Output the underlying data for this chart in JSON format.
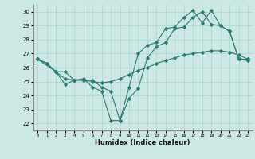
{
  "xlabel": "Humidex (Indice chaleur)",
  "bg_color": "#cce8e4",
  "grid_color": "#aad4cc",
  "line_color": "#2d7a6e",
  "xlim": [
    -0.5,
    23.5
  ],
  "ylim": [
    21.5,
    30.5
  ],
  "xticks": [
    0,
    1,
    2,
    3,
    4,
    5,
    6,
    7,
    8,
    9,
    10,
    11,
    12,
    13,
    14,
    15,
    16,
    17,
    18,
    19,
    20,
    21,
    22,
    23
  ],
  "yticks": [
    22,
    23,
    24,
    25,
    26,
    27,
    28,
    29,
    30
  ],
  "line1_x": [
    0,
    1,
    2,
    3,
    4,
    5,
    6,
    7,
    8,
    9,
    10,
    11,
    12,
    13,
    14,
    15,
    16,
    17,
    18,
    19,
    20,
    21,
    22,
    23
  ],
  "line1_y": [
    26.6,
    26.3,
    25.7,
    24.8,
    25.1,
    25.2,
    24.6,
    24.3,
    22.2,
    22.2,
    24.6,
    27.0,
    27.6,
    27.8,
    28.8,
    28.9,
    29.6,
    30.1,
    29.2,
    30.1,
    29.0,
    28.6,
    26.6,
    26.6
  ],
  "line2_x": [
    0,
    1,
    2,
    3,
    4,
    5,
    6,
    7,
    8,
    9,
    10,
    11,
    12,
    13,
    14,
    15,
    16,
    17,
    18,
    19,
    20,
    21,
    22,
    23
  ],
  "line2_y": [
    26.6,
    26.3,
    25.7,
    25.2,
    25.1,
    25.1,
    25.0,
    24.9,
    25.0,
    25.2,
    25.5,
    25.8,
    26.0,
    26.3,
    26.5,
    26.7,
    26.9,
    27.0,
    27.1,
    27.2,
    27.2,
    27.1,
    26.9,
    26.6
  ],
  "line3_x": [
    0,
    2,
    3,
    4,
    5,
    6,
    7,
    8,
    9,
    10,
    11,
    12,
    13,
    14,
    15,
    16,
    17,
    18,
    19,
    20,
    21,
    22,
    23
  ],
  "line3_y": [
    26.6,
    25.7,
    25.7,
    25.1,
    25.1,
    25.1,
    24.6,
    24.3,
    22.2,
    23.8,
    24.5,
    26.7,
    27.5,
    27.8,
    28.8,
    28.9,
    29.6,
    30.0,
    29.1,
    29.0,
    28.6,
    26.6,
    26.5
  ]
}
